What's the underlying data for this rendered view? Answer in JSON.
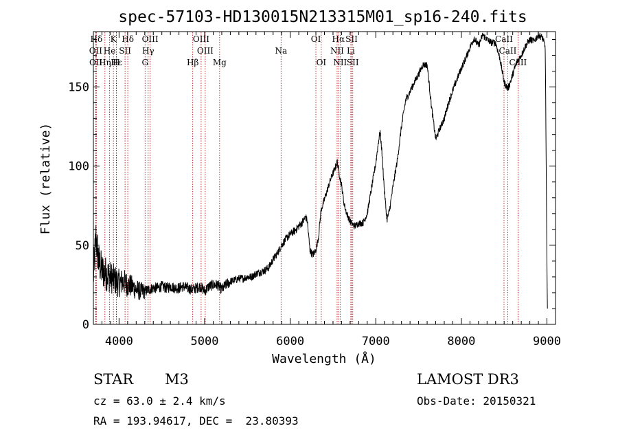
{
  "chart_data": {
    "type": "line",
    "title": "spec-57103-HD130015N213315M01_sp16-240.fits",
    "xlabel": "Wavelength (Å)",
    "ylabel": "Flux (relative)",
    "xlim": [
      3700,
      9100
    ],
    "ylim": [
      0,
      185
    ],
    "xticks": [
      4000,
      5000,
      6000,
      7000,
      8000,
      9000
    ],
    "yticks": [
      0,
      50,
      100,
      150
    ],
    "grid": false,
    "line_color": "#000000",
    "marker_color": "#b00000",
    "spectrum_anchors": [
      [
        3700,
        30
      ],
      [
        3730,
        55
      ],
      [
        3760,
        40
      ],
      [
        3800,
        34
      ],
      [
        3850,
        32
      ],
      [
        3900,
        30
      ],
      [
        3950,
        28
      ],
      [
        4000,
        26
      ],
      [
        4050,
        27
      ],
      [
        4100,
        25
      ],
      [
        4150,
        24
      ],
      [
        4200,
        22
      ],
      [
        4250,
        21
      ],
      [
        4300,
        21
      ],
      [
        4350,
        22
      ],
      [
        4400,
        23
      ],
      [
        4450,
        23
      ],
      [
        4500,
        24
      ],
      [
        4550,
        23
      ],
      [
        4600,
        24
      ],
      [
        4650,
        23
      ],
      [
        4700,
        23
      ],
      [
        4750,
        24
      ],
      [
        4800,
        23
      ],
      [
        4850,
        22
      ],
      [
        4900,
        23
      ],
      [
        4950,
        24
      ],
      [
        5000,
        21
      ],
      [
        5050,
        24
      ],
      [
        5100,
        25
      ],
      [
        5150,
        25
      ],
      [
        5200,
        22
      ],
      [
        5250,
        25
      ],
      [
        5300,
        27
      ],
      [
        5350,
        28
      ],
      [
        5400,
        29
      ],
      [
        5450,
        29
      ],
      [
        5500,
        30
      ],
      [
        5550,
        30
      ],
      [
        5600,
        32
      ],
      [
        5650,
        33
      ],
      [
        5700,
        34
      ],
      [
        5750,
        36
      ],
      [
        5800,
        41
      ],
      [
        5850,
        45
      ],
      [
        5900,
        50
      ],
      [
        5950,
        54
      ],
      [
        6000,
        57
      ],
      [
        6050,
        59
      ],
      [
        6100,
        62
      ],
      [
        6150,
        65
      ],
      [
        6180,
        68
      ],
      [
        6200,
        65
      ],
      [
        6230,
        47
      ],
      [
        6260,
        44
      ],
      [
        6280,
        45
      ],
      [
        6300,
        47
      ],
      [
        6330,
        55
      ],
      [
        6360,
        72
      ],
      [
        6400,
        79
      ],
      [
        6440,
        86
      ],
      [
        6480,
        93
      ],
      [
        6520,
        98
      ],
      [
        6550,
        103
      ],
      [
        6570,
        96
      ],
      [
        6600,
        88
      ],
      [
        6630,
        76
      ],
      [
        6660,
        70
      ],
      [
        6700,
        65
      ],
      [
        6750,
        62
      ],
      [
        6800,
        64
      ],
      [
        6850,
        64
      ],
      [
        6900,
        70
      ],
      [
        6950,
        86
      ],
      [
        7000,
        102
      ],
      [
        7030,
        115
      ],
      [
        7050,
        122
      ],
      [
        7070,
        110
      ],
      [
        7100,
        85
      ],
      [
        7130,
        66
      ],
      [
        7160,
        72
      ],
      [
        7200,
        87
      ],
      [
        7250,
        103
      ],
      [
        7300,
        125
      ],
      [
        7350,
        142
      ],
      [
        7400,
        147
      ],
      [
        7450,
        153
      ],
      [
        7500,
        158
      ],
      [
        7550,
        164
      ],
      [
        7600,
        164
      ],
      [
        7650,
        138
      ],
      [
        7700,
        117
      ],
      [
        7750,
        124
      ],
      [
        7800,
        130
      ],
      [
        7850,
        140
      ],
      [
        7900,
        148
      ],
      [
        7950,
        155
      ],
      [
        8000,
        162
      ],
      [
        8050,
        168
      ],
      [
        8100,
        175
      ],
      [
        8150,
        181
      ],
      [
        8200,
        176
      ],
      [
        8250,
        183
      ],
      [
        8300,
        180
      ],
      [
        8350,
        178
      ],
      [
        8400,
        178
      ],
      [
        8450,
        168
      ],
      [
        8500,
        153
      ],
      [
        8540,
        149
      ],
      [
        8560,
        151
      ],
      [
        8600,
        158
      ],
      [
        8650,
        166
      ],
      [
        8700,
        170
      ],
      [
        8750,
        176
      ],
      [
        8800,
        180
      ],
      [
        8850,
        179
      ],
      [
        8900,
        183
      ],
      [
        8950,
        181
      ],
      [
        8980,
        175
      ],
      [
        9000,
        40
      ],
      [
        9005,
        10
      ]
    ],
    "lines": [
      {
        "label": "Hδ",
        "x": 3735,
        "row": 0
      },
      {
        "label": "K",
        "x": 3934,
        "row": 0
      },
      {
        "label": "Hδ",
        "x": 4102,
        "row": 0
      },
      {
        "label": "OIII",
        "x": 4363,
        "row": 0
      },
      {
        "label": "OIII",
        "x": 4959,
        "row": 0
      },
      {
        "label": "OI",
        "x": 6300,
        "row": 0
      },
      {
        "label": "Hα",
        "x": 6563,
        "row": 0
      },
      {
        "label": "SII",
        "x": 6717,
        "row": 0
      },
      {
        "label": "CaII",
        "x": 8498,
        "row": 0
      },
      {
        "label": "OII",
        "x": 3727,
        "row": 1
      },
      {
        "label": "He",
        "x": 3889,
        "row": 1
      },
      {
        "label": "SII",
        "x": 4070,
        "row": 1
      },
      {
        "label": "Hγ",
        "x": 4340,
        "row": 1
      },
      {
        "label": "OIII",
        "x": 5007,
        "row": 1
      },
      {
        "label": "Na",
        "x": 5893,
        "row": 1
      },
      {
        "label": "NII",
        "x": 6548,
        "row": 1
      },
      {
        "label": "Li",
        "x": 6708,
        "row": 1
      },
      {
        "label": "CaII",
        "x": 8542,
        "row": 1
      },
      {
        "label": "OII",
        "x": 3729,
        "row": 2
      },
      {
        "label": "Hε",
        "x": 3970,
        "row": 2
      },
      {
        "label": "Hη",
        "x": 3835,
        "row": 2
      },
      {
        "label": "H",
        "x": 3968,
        "row": 2
      },
      {
        "label": "G",
        "x": 4304,
        "row": 2
      },
      {
        "label": "Hβ",
        "x": 4861,
        "row": 2
      },
      {
        "label": "Mg",
        "x": 5175,
        "row": 2
      },
      {
        "label": "OI",
        "x": 6363,
        "row": 2
      },
      {
        "label": "NII",
        "x": 6583,
        "row": 2
      },
      {
        "label": "SII",
        "x": 6731,
        "row": 2
      },
      {
        "label": "CaII",
        "x": 8662,
        "row": 2
      }
    ]
  },
  "info": {
    "object_class": "STAR",
    "subclass": "M3",
    "survey": "LAMOST DR3",
    "redshift": "cz = 63.0 ± 2.4 km/s",
    "obs_date": "Obs-Date: 20150321",
    "coords": "RA = 193.94617, DEC =  23.80393"
  }
}
